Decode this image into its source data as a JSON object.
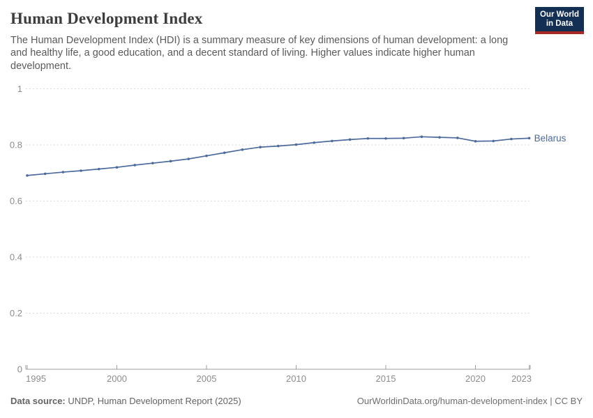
{
  "header": {
    "title": "Human Development Index",
    "subtitle": "The Human Development Index (HDI) is a summary measure of key dimensions of human development: a long and healthy life, a good education, and a decent standard of living. Higher values indicate higher human development.",
    "logo": {
      "line1": "Our World",
      "line2": "in Data"
    }
  },
  "chart_data": {
    "type": "line",
    "title": "Human Development Index",
    "x": [
      1995,
      1996,
      1997,
      1998,
      1999,
      2000,
      2001,
      2002,
      2003,
      2004,
      2005,
      2006,
      2007,
      2008,
      2009,
      2010,
      2011,
      2012,
      2013,
      2014,
      2015,
      2016,
      2017,
      2018,
      2019,
      2020,
      2021,
      2022,
      2023
    ],
    "series": [
      {
        "name": "Belarus",
        "color": "#4c6a9c",
        "values": [
          0.691,
          0.697,
          0.703,
          0.708,
          0.714,
          0.72,
          0.728,
          0.735,
          0.742,
          0.75,
          0.761,
          0.772,
          0.783,
          0.792,
          0.796,
          0.801,
          0.808,
          0.814,
          0.819,
          0.823,
          0.823,
          0.824,
          0.829,
          0.827,
          0.825,
          0.813,
          0.814,
          0.821,
          0.824
        ]
      }
    ],
    "xlabel": "",
    "ylabel": "",
    "x_ticks": [
      1995,
      2000,
      2005,
      2010,
      2015,
      2020,
      2023
    ],
    "y_ticks": [
      0,
      0.2,
      0.4,
      0.6,
      0.8,
      1
    ],
    "xlim": [
      1995,
      2023
    ],
    "ylim": [
      0,
      1
    ],
    "grid": "horizontal-dashed",
    "legend_position": "end-of-line-label",
    "end_label": "Belarus"
  },
  "footer": {
    "source_label": "Data source:",
    "source_text": " UNDP, Human Development Report (2025)",
    "citation": "OurWorldinData.org/human-development-index | CC BY"
  },
  "colors": {
    "line": "#4c6a9c",
    "gridline": "#dadada",
    "axis": "#9e9e9e",
    "tick_label": "#8c8c8c",
    "logo_bg": "#132f54",
    "logo_accent": "#a92a25"
  }
}
